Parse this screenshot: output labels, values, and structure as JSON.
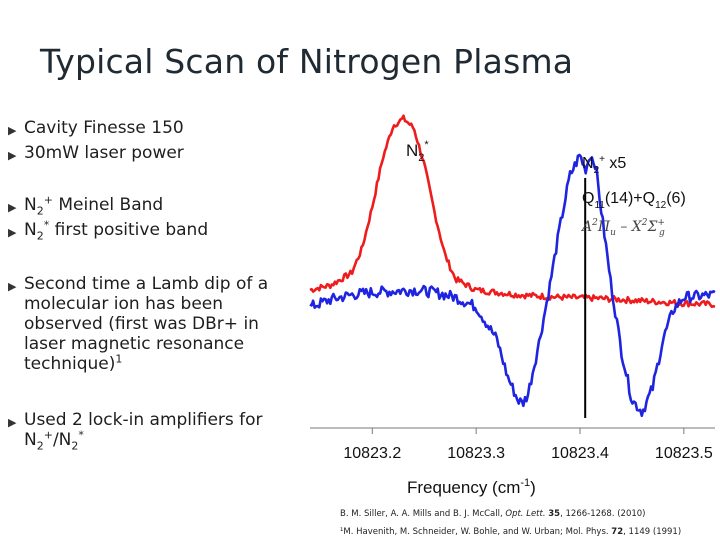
{
  "slide": {
    "title": "Typical Scan of Nitrogen Plasma",
    "bullets": [
      {
        "parts": [
          {
            "t": "Cavity Finesse 150"
          }
        ]
      },
      {
        "parts": [
          {
            "t": "30mW laser power"
          }
        ]
      },
      {
        "parts": [
          {
            "t": "N"
          },
          {
            "sub": "2"
          },
          {
            "sup": "+"
          },
          {
            "t": " Meinel Band"
          }
        ]
      },
      {
        "parts": [
          {
            "t": "N"
          },
          {
            "sub": "2"
          },
          {
            "sup": "*"
          },
          {
            "t": " first positive band"
          }
        ]
      },
      {
        "parts": [
          {
            "t": "Second time a Lamb dip of a molecular ion has been observed (first was DBr+ in laser magnetic resonance technique)"
          },
          {
            "sup": "1"
          }
        ]
      },
      {
        "parts": [
          {
            "t": "Used 2 lock-in amplifiers for N"
          },
          {
            "sub": "2"
          },
          {
            "sup": "+"
          },
          {
            "t": "/N"
          },
          {
            "sub": "2"
          },
          {
            "sup": "*"
          }
        ]
      }
    ]
  },
  "figure": {
    "label_n2star": "N2*",
    "label_n2plus_x5": "N2+ x5",
    "label_transition": "Q11(14)+Q12(6)",
    "label_states": "A²Πu – X²Σg+",
    "xlabel": "Frequency (cm-1)"
  },
  "chart_data": {
    "type": "line",
    "xlabel": "Frequency (cm-1)",
    "ylabel": "",
    "xticks": [
      "10823.2",
      "10823.3",
      "10823.4",
      "10823.5"
    ],
    "xlim": [
      10823.14,
      10823.53
    ],
    "ylim": [
      -1.0,
      1.55
    ],
    "grid": false,
    "colors": {
      "n2star": "#ee1c1c",
      "n2plus": "#1f24e0"
    },
    "series": [
      {
        "name": "N2*",
        "x": [
          10823.14,
          10823.16,
          10823.18,
          10823.19,
          10823.2,
          10823.21,
          10823.22,
          10823.23,
          10823.24,
          10823.25,
          10823.26,
          10823.27,
          10823.28,
          10823.3,
          10823.34,
          10823.38,
          10823.42,
          10823.46,
          10823.5,
          10823.53
        ],
        "values": [
          0.06,
          0.1,
          0.2,
          0.4,
          0.75,
          1.15,
          1.42,
          1.48,
          1.4,
          1.1,
          0.7,
          0.35,
          0.15,
          0.06,
          0.02,
          0.0,
          -0.01,
          -0.03,
          -0.05,
          -0.06
        ]
      },
      {
        "name": "N2+ x5",
        "x": [
          10823.14,
          10823.16,
          10823.18,
          10823.2,
          10823.22,
          10823.24,
          10823.26,
          10823.28,
          10823.3,
          10823.32,
          10823.33,
          10823.34,
          10823.345,
          10823.35,
          10823.36,
          10823.37,
          10823.38,
          10823.39,
          10823.4,
          10823.405,
          10823.41,
          10823.415,
          10823.42,
          10823.43,
          10823.44,
          10823.45,
          10823.46,
          10823.47,
          10823.48,
          10823.49,
          10823.5,
          10823.53
        ],
        "values": [
          -0.08,
          -0.02,
          0.02,
          0.04,
          0.05,
          0.06,
          0.04,
          0.0,
          -0.08,
          -0.35,
          -0.65,
          -0.85,
          -0.88,
          -0.8,
          -0.4,
          0.05,
          0.55,
          1.0,
          1.18,
          1.05,
          1.18,
          1.1,
          0.75,
          0.1,
          -0.45,
          -0.85,
          -0.95,
          -0.75,
          -0.35,
          -0.1,
          0.0,
          0.02
        ]
      }
    ],
    "annotations": [
      {
        "type": "vline",
        "x": 10823.405
      }
    ]
  },
  "references": [
    {
      "pre": "B. M. Siller, A. A. Mills and B. J. McCall, ",
      "em": "Opt. Lett.",
      "mid": " ",
      "b": "35",
      "post": ", 1266-1268. (2010)"
    },
    {
      "pre": "¹M. Havenith, M. Schneider, W. Bohle, and W. Urban; Mol. Phys. ",
      "em": "",
      "mid": "",
      "b": "72",
      "post": ", 1149 (1991)"
    }
  ]
}
